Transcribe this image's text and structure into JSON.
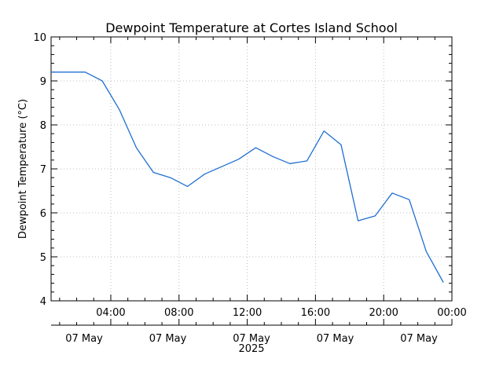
{
  "chart_data": {
    "type": "line",
    "title": "Dewpoint Temperature at Cortes Island School",
    "ylabel": "Dewpoint Temperature (°C)",
    "xlabel": "",
    "ylim": [
      4,
      10
    ],
    "y_ticks": [
      "4",
      "5",
      "6",
      "7",
      "8",
      "9",
      "10"
    ],
    "x_time_range": [
      "2025-05-07T00:30",
      "2025-05-08T00:00"
    ],
    "x_ticks": [
      "04:00",
      "08:00",
      "12:00",
      "16:00",
      "20:00",
      "00:00"
    ],
    "date_labels": [
      "07 May",
      "07 May",
      "07 May",
      "07 May",
      "07 May"
    ],
    "year_label": "2025",
    "grid": true,
    "line_color": "#1f6fd1",
    "series": [
      {
        "x": [
          "2025-05-07T00:30",
          "2025-05-07T01:30",
          "2025-05-07T02:30",
          "2025-05-07T03:30",
          "2025-05-07T04:30",
          "2025-05-07T05:30",
          "2025-05-07T06:30",
          "2025-05-07T07:30",
          "2025-05-07T08:30",
          "2025-05-07T09:30",
          "2025-05-07T10:30",
          "2025-05-07T11:30",
          "2025-05-07T12:30",
          "2025-05-07T13:30",
          "2025-05-07T14:30",
          "2025-05-07T15:30",
          "2025-05-07T16:30",
          "2025-05-07T17:30",
          "2025-05-07T18:30",
          "2025-05-07T19:30",
          "2025-05-07T20:30",
          "2025-05-07T21:30",
          "2025-05-07T22:30",
          "2025-05-07T23:30"
        ],
        "values": [
          9.2,
          9.2,
          9.2,
          9.0,
          8.35,
          7.48,
          6.92,
          6.8,
          6.6,
          6.88,
          7.05,
          7.22,
          7.48,
          7.28,
          7.12,
          7.18,
          7.86,
          7.55,
          5.82,
          5.93,
          6.45,
          6.3,
          5.12,
          4.42
        ]
      }
    ]
  }
}
